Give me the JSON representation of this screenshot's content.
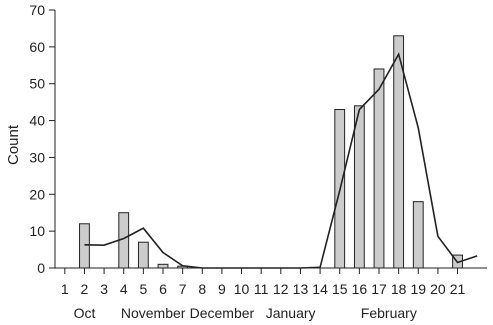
{
  "chart_data": {
    "type": "bar",
    "ylabel": "Count",
    "xlabel": "",
    "ylim": [
      0,
      70
    ],
    "yticks": [
      0,
      10,
      20,
      30,
      40,
      50,
      60,
      70
    ],
    "xlim": [
      0.5,
      22.5
    ],
    "categories": [
      "1",
      "2",
      "3",
      "4",
      "5",
      "6",
      "7",
      "8",
      "9",
      "10",
      "11",
      "12",
      "13",
      "14",
      "15",
      "16",
      "17",
      "18",
      "19",
      "20",
      "21"
    ],
    "month_labels": [
      {
        "label": "Oct",
        "at": 2
      },
      {
        "label": "November",
        "at": 5.5
      },
      {
        "label": "December",
        "at": 9
      },
      {
        "label": "January",
        "at": 12.5
      },
      {
        "label": "February",
        "at": 17.5
      }
    ],
    "grid": false,
    "colors": {
      "bar": "#cccccc",
      "bar_edge": "#222222",
      "line": "#222222"
    },
    "series": [
      {
        "type": "bar",
        "x": [
          1,
          2,
          3,
          4,
          5,
          6,
          7,
          8,
          9,
          10,
          11,
          12,
          13,
          14,
          15,
          16,
          17,
          18,
          19,
          20,
          21
        ],
        "values": [
          0,
          12,
          0,
          15,
          7,
          1,
          0.5,
          0,
          0,
          0,
          0,
          0,
          0,
          0,
          43,
          44,
          54,
          63,
          18,
          0,
          3.5
        ]
      },
      {
        "type": "line",
        "x": [
          2,
          3,
          4,
          5,
          6,
          7,
          8,
          9,
          10,
          11,
          12,
          13,
          14,
          15,
          16,
          17,
          18,
          19,
          20,
          21,
          22
        ],
        "values": [
          6.3,
          6.2,
          8,
          10.8,
          4.2,
          0.6,
          0,
          0,
          0,
          0,
          0,
          0,
          0.2,
          21,
          43,
          48.5,
          58,
          38,
          8.6,
          1.5,
          3.3
        ]
      }
    ]
  }
}
